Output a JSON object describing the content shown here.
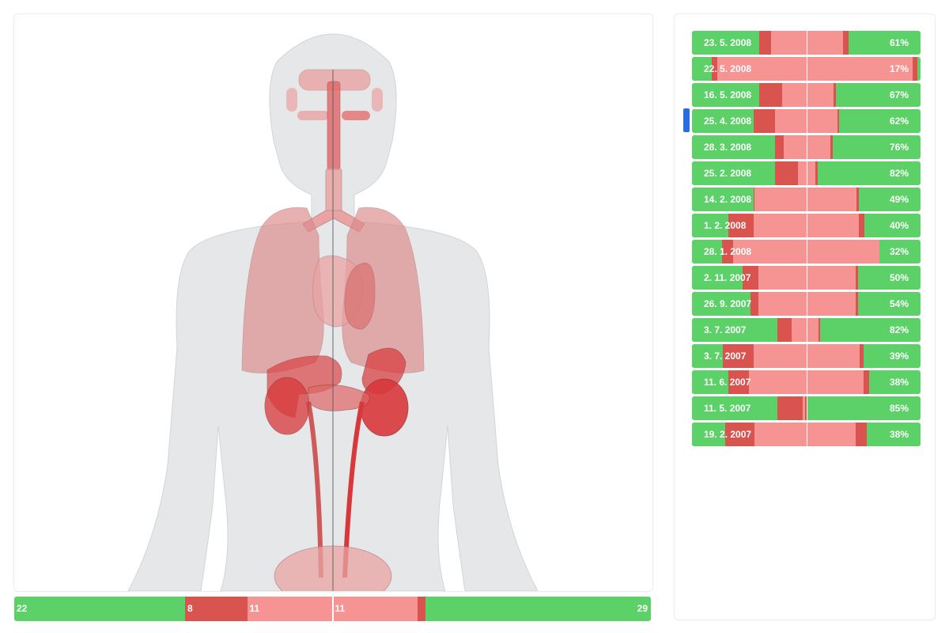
{
  "colors": {
    "correct": "#5bd168",
    "wrong": "#d9534f",
    "partial": "#f59493",
    "silhouette": "#e6e7e9",
    "organ": "#e9a3a3",
    "organ_active": "#d9383a",
    "marker": "#2a6de0"
  },
  "figure": {
    "icon": "human-anatomy-icon"
  },
  "summary": {
    "segments": [
      {
        "status": "correct",
        "value": 22,
        "label": "22"
      },
      {
        "status": "wrong",
        "value": 8,
        "label": "8"
      },
      {
        "status": "partial",
        "value": 11,
        "label": "11"
      },
      {
        "status": "partial",
        "value": 11,
        "label": "11"
      },
      {
        "status": "wrong",
        "value": 1,
        "label": ""
      },
      {
        "status": "correct",
        "value": 29,
        "label": "29"
      }
    ]
  },
  "history": {
    "selected_index": 3,
    "rows": [
      {
        "date": "23. 5. 2008",
        "percent": "61%",
        "correct_left": 29.5,
        "wrong_left": 5,
        "partial": 31.5,
        "wrong_right": 2.5
      },
      {
        "date": "22. 5. 2008",
        "percent": "17%",
        "correct_left": 8.5,
        "wrong_left": 2.5,
        "partial": 85.5,
        "wrong_right": 2
      },
      {
        "date": "16. 5. 2008",
        "percent": "67%",
        "correct_left": 29.5,
        "wrong_left": 10,
        "partial": 22.5,
        "wrong_right": 1
      },
      {
        "date": "25. 4. 2008",
        "percent": "62%",
        "correct_left": 27,
        "wrong_left": 9.5,
        "partial": 27,
        "wrong_right": 1
      },
      {
        "date": "28. 3. 2008",
        "percent": "76%",
        "correct_left": 36.5,
        "wrong_left": 3.5,
        "partial": 20.5,
        "wrong_right": 1
      },
      {
        "date": "25. 2. 2008",
        "percent": "82%",
        "correct_left": 36.5,
        "wrong_left": 10,
        "partial": 7.5,
        "wrong_right": 1
      },
      {
        "date": "14. 2. 2008",
        "percent": "49%",
        "correct_left": 27,
        "wrong_left": 0.5,
        "partial": 44.5,
        "wrong_right": 1
      },
      {
        "date": "1. 2. 2008",
        "percent": "40%",
        "correct_left": 16,
        "wrong_left": 11,
        "partial": 46,
        "wrong_right": 2.5
      },
      {
        "date": "28. 1. 2008",
        "percent": "32%",
        "correct_left": 13,
        "wrong_left": 5,
        "partial": 64,
        "wrong_right": 0
      },
      {
        "date": "2. 11. 2007",
        "percent": "50%",
        "correct_left": 22,
        "wrong_left": 7,
        "partial": 42.5,
        "wrong_right": 1
      },
      {
        "date": "26. 9. 2007",
        "percent": "54%",
        "correct_left": 25.5,
        "wrong_left": 3.5,
        "partial": 42.5,
        "wrong_right": 1
      },
      {
        "date": "3. 7. 2007",
        "percent": "82%",
        "correct_left": 37.5,
        "wrong_left": 6,
        "partial": 12,
        "wrong_right": 0.5
      },
      {
        "date": "3. 7. 2007",
        "percent": "39%",
        "correct_left": 13.5,
        "wrong_left": 13.5,
        "partial": 46.5,
        "wrong_right": 1.5
      },
      {
        "date": "11. 6. 2007",
        "percent": "38%",
        "correct_left": 16,
        "wrong_left": 9,
        "partial": 50,
        "wrong_right": 2.5
      },
      {
        "date": "11. 5. 2007",
        "percent": "85%",
        "correct_left": 37.5,
        "wrong_left": 11,
        "partial": 1,
        "wrong_right": 1
      },
      {
        "date": "19. 2. 2007",
        "percent": "38%",
        "correct_left": 14.5,
        "wrong_left": 13,
        "partial": 44,
        "wrong_right": 5
      }
    ]
  }
}
